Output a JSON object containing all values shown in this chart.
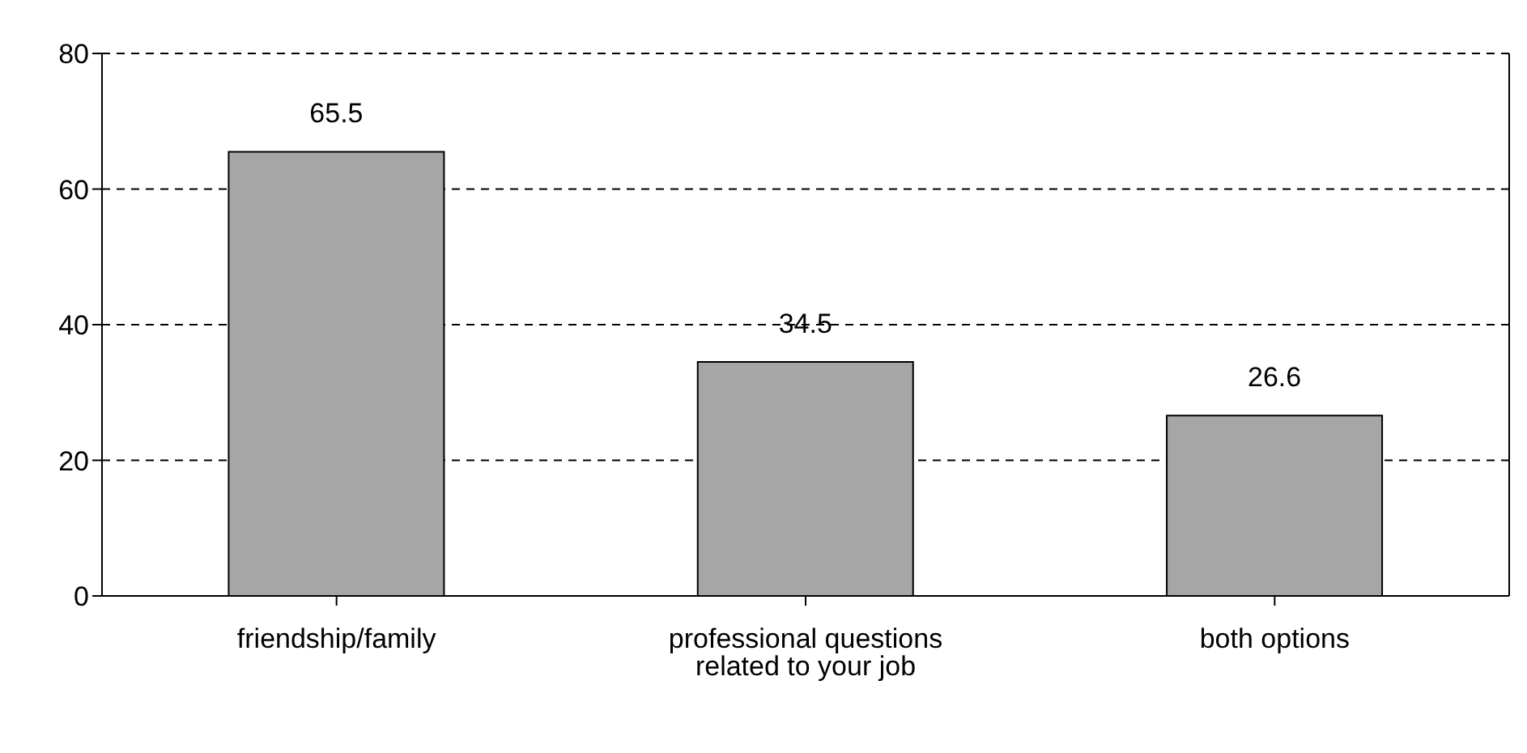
{
  "chart_data": {
    "type": "bar",
    "categories": [
      "friendship/family",
      "professional questions related to your job",
      "both options"
    ],
    "values": [
      65.5,
      34.5,
      26.6
    ],
    "color": "#a6a6a6",
    "data_labels": true,
    "ylim": [
      0,
      80
    ],
    "yticks": [
      0,
      20,
      40,
      60,
      80
    ],
    "grid": "y"
  }
}
